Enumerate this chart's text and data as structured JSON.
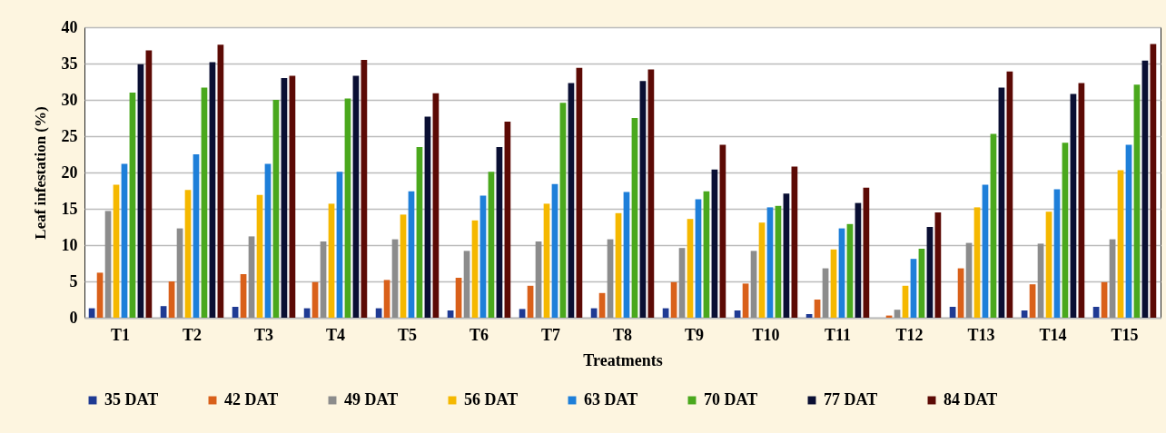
{
  "chart_data": {
    "type": "bar",
    "xlabel": "Treatments",
    "ylabel": "Leaf infestation (%)",
    "categories": [
      "T1",
      "T2",
      "T3",
      "T4",
      "T5",
      "T6",
      "T7",
      "T8",
      "T9",
      "T10",
      "T11",
      "T12",
      "T13",
      "T14",
      "T15"
    ],
    "series": [
      {
        "name": "35 DAT",
        "color": "#1f3a93",
        "values": [
          1.3,
          1.6,
          1.5,
          1.3,
          1.3,
          1.0,
          1.2,
          1.3,
          1.3,
          1.0,
          0.5,
          0.0,
          1.5,
          1.0,
          1.5
        ]
      },
      {
        "name": "42 DAT",
        "color": "#d9601a",
        "values": [
          6.2,
          5.0,
          6.0,
          4.9,
          5.2,
          5.5,
          4.4,
          3.4,
          4.9,
          4.7,
          2.5,
          0.3,
          6.8,
          4.6,
          4.9
        ]
      },
      {
        "name": "49 DAT",
        "color": "#8c8c8c",
        "values": [
          14.7,
          12.3,
          11.2,
          10.5,
          10.8,
          9.2,
          10.5,
          10.8,
          9.6,
          9.2,
          6.8,
          1.1,
          10.3,
          10.2,
          10.8
        ]
      },
      {
        "name": "56 DAT",
        "color": "#f5b800",
        "values": [
          18.3,
          17.6,
          16.9,
          15.7,
          14.2,
          13.4,
          15.7,
          14.4,
          13.6,
          13.1,
          9.4,
          4.4,
          15.2,
          14.6,
          20.3
        ]
      },
      {
        "name": "63 DAT",
        "color": "#1e7fd9",
        "values": [
          21.2,
          22.5,
          21.2,
          20.1,
          17.4,
          16.8,
          18.4,
          17.3,
          16.3,
          15.2,
          12.3,
          8.1,
          18.3,
          17.7,
          23.8
        ]
      },
      {
        "name": "70 DAT",
        "color": "#4aa81d",
        "values": [
          31.0,
          31.7,
          30.0,
          30.2,
          23.5,
          20.1,
          29.6,
          27.5,
          17.4,
          15.4,
          12.9,
          9.5,
          25.3,
          24.1,
          32.1
        ]
      },
      {
        "name": "77 DAT",
        "color": "#0a0f33",
        "values": [
          34.9,
          35.2,
          33.0,
          33.3,
          27.7,
          23.5,
          32.3,
          32.6,
          20.4,
          17.1,
          15.8,
          12.5,
          31.7,
          30.8,
          35.4
        ]
      },
      {
        "name": "84 DAT",
        "color": "#5c0a05",
        "values": [
          36.8,
          37.6,
          33.3,
          35.5,
          30.9,
          27.0,
          34.4,
          34.2,
          23.8,
          20.8,
          17.9,
          14.5,
          33.9,
          32.3,
          37.7
        ]
      }
    ],
    "ylim": [
      0,
      40
    ],
    "yticks": [
      0,
      5,
      10,
      15,
      20,
      25,
      30,
      35,
      40
    ],
    "grid": "y",
    "legend": "bottom"
  }
}
